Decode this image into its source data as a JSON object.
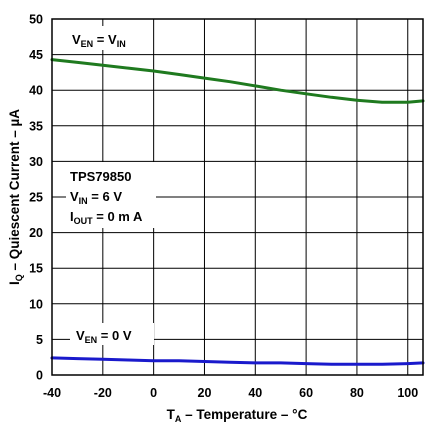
{
  "chart_data": {
    "type": "line",
    "xlabel": {
      "prefix": "T",
      "sub": "A",
      "suffix": " – Temperature – °C"
    },
    "ylabel": {
      "prefix": "I",
      "sub": "Q",
      "suffix": " – Quiescent Current – µA"
    },
    "xlim": [
      -40,
      106
    ],
    "ylim": [
      0,
      50
    ],
    "xticks": [
      -40,
      -20,
      0,
      20,
      40,
      60,
      80,
      100
    ],
    "yticks": [
      0,
      5,
      10,
      15,
      20,
      25,
      30,
      35,
      40,
      45,
      50
    ],
    "grid": true,
    "series": [
      {
        "color": "#1f7a1f",
        "x": [
          -40,
          -30,
          -20,
          -10,
          0,
          10,
          20,
          30,
          40,
          50,
          60,
          70,
          80,
          90,
          100,
          106
        ],
        "y": [
          44.3,
          43.9,
          43.5,
          43.1,
          42.7,
          42.2,
          41.7,
          41.2,
          40.6,
          40.0,
          39.5,
          39.0,
          38.6,
          38.3,
          38.3,
          38.5
        ]
      },
      {
        "color": "#1a1acc",
        "x": [
          -40,
          -30,
          -20,
          -10,
          0,
          10,
          20,
          30,
          40,
          50,
          60,
          70,
          80,
          90,
          100,
          106
        ],
        "y": [
          2.4,
          2.3,
          2.2,
          2.1,
          2.0,
          2.0,
          1.9,
          1.8,
          1.7,
          1.7,
          1.6,
          1.5,
          1.5,
          1.5,
          1.6,
          1.7
        ]
      }
    ],
    "annotations": {
      "ven_vin": {
        "a": "V",
        "a_sub": "EN",
        "mid": " = V",
        "b_sub": "IN"
      },
      "ven_0": {
        "a": "V",
        "a_sub": "EN",
        "rest": " = 0 V"
      },
      "device": "TPS79850",
      "vin": {
        "a": "V",
        "a_sub": "IN",
        "rest": " = 6 V"
      },
      "iout": {
        "a": "I",
        "a_sub": "OUT",
        "rest": " = 0 m A"
      }
    }
  }
}
